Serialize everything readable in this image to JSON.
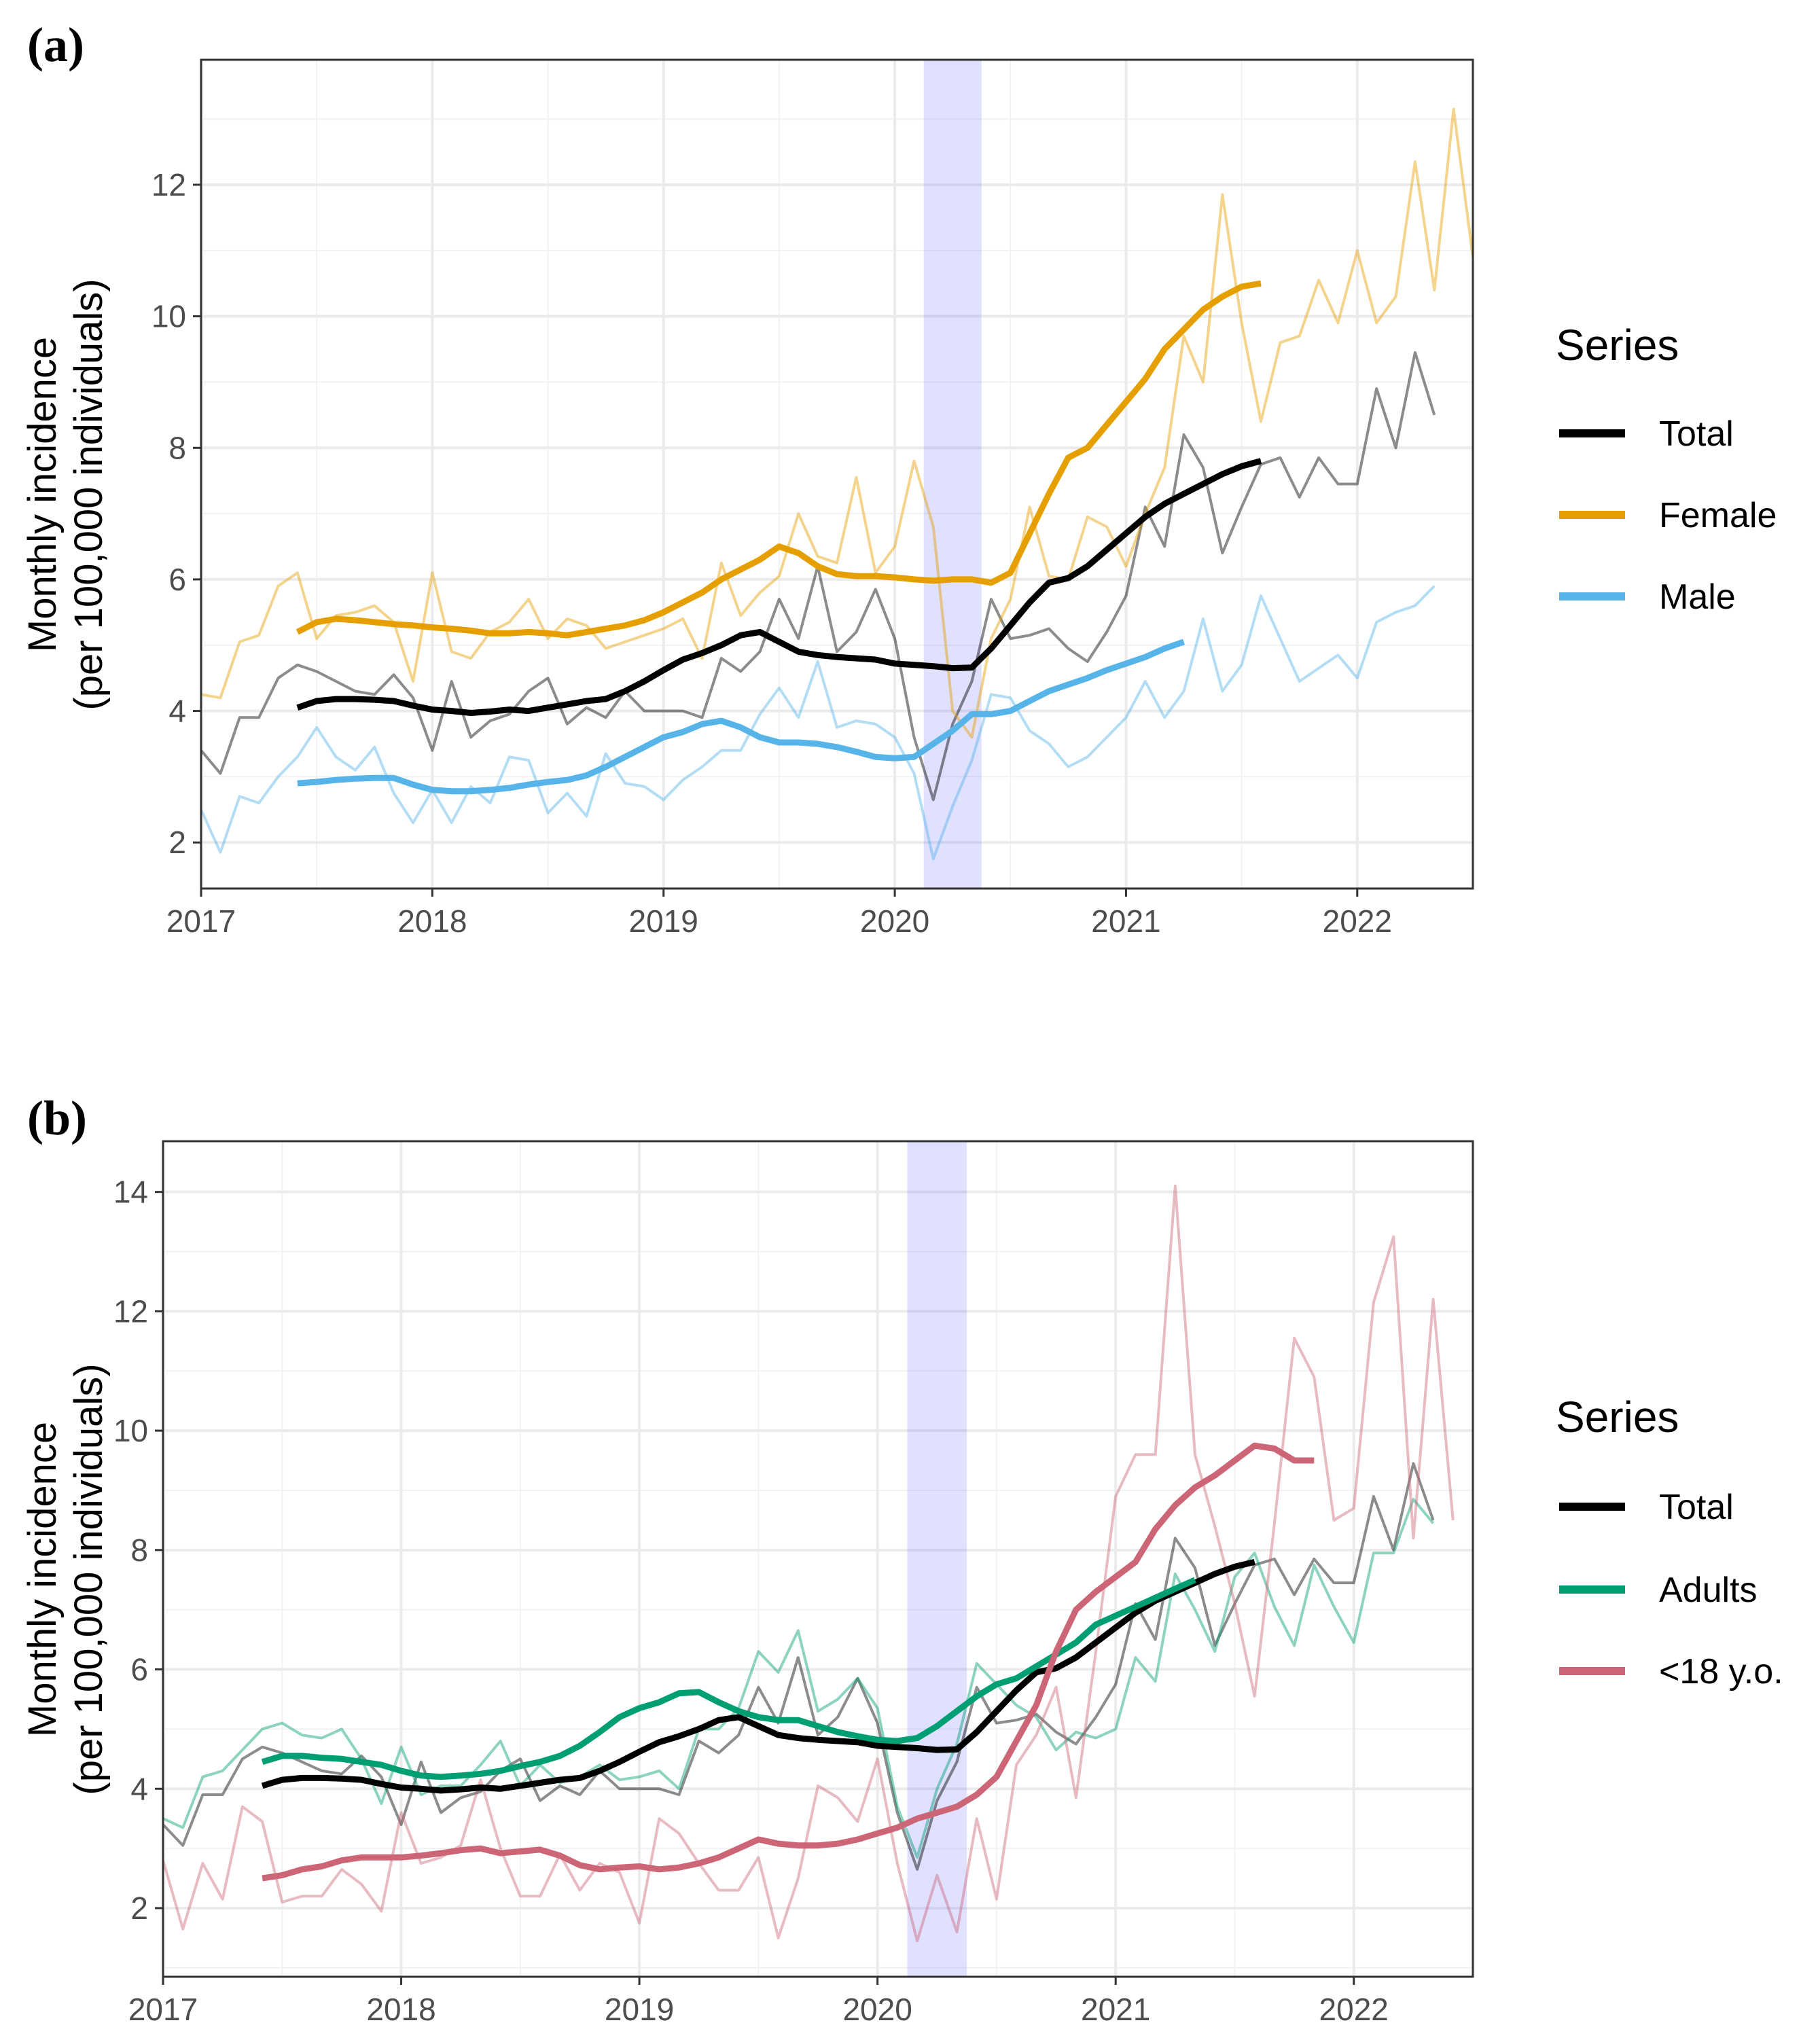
{
  "chart_data": [
    {
      "id": "a",
      "panel_label": "(a)",
      "type": "line",
      "ylabel_lines": [
        "Monthly incidence",
        "(per 100,000 individuals)"
      ],
      "xlabel": "",
      "xlim": [
        2017.0,
        2022.5
      ],
      "ylim": [
        1.3,
        13.9
      ],
      "x_ticks": [
        2017,
        2018,
        2019,
        2020,
        2021,
        2022
      ],
      "x_tick_labels": [
        "2017",
        "2018",
        "2019",
        "2020",
        "2021",
        "2022"
      ],
      "y_ticks": [
        2,
        4,
        6,
        8,
        10,
        12
      ],
      "y_tick_labels": [
        "2",
        "4",
        "6",
        "8",
        "10",
        "12"
      ],
      "y_minor": [
        3,
        5,
        7,
        9,
        11,
        13
      ],
      "grid": true,
      "highlight_band": [
        2020.125,
        2020.375
      ],
      "legend_title": "Series",
      "legend_position": "right",
      "series": [
        {
          "name": "Total",
          "color": "#000000",
          "raw": [
            3.4,
            3.05,
            3.9,
            3.9,
            4.5,
            4.7,
            4.6,
            4.45,
            4.3,
            4.25,
            4.55,
            4.2,
            3.4,
            4.45,
            3.6,
            3.85,
            3.95,
            4.3,
            4.5,
            3.8,
            4.05,
            3.9,
            4.3,
            4.0,
            4.0,
            4.0,
            3.9,
            4.8,
            4.6,
            4.9,
            5.7,
            5.1,
            6.2,
            4.9,
            5.2,
            5.85,
            5.1,
            3.6,
            2.65,
            3.8,
            4.45,
            5.7,
            5.1,
            5.15,
            5.25,
            4.95,
            4.75,
            5.2,
            5.75,
            7.1,
            6.5,
            8.2,
            7.7,
            6.4,
            7.1,
            7.75,
            7.85,
            7.25,
            7.85,
            7.45,
            7.45,
            8.9,
            8.0,
            9.45,
            8.5
          ],
          "smooth": [
            4.05,
            4.15,
            4.18,
            4.18,
            4.17,
            4.15,
            4.08,
            4.02,
            4.0,
            3.97,
            3.99,
            4.02,
            4.0,
            4.05,
            4.1,
            4.15,
            4.18,
            4.3,
            4.45,
            4.62,
            4.78,
            4.88,
            5.0,
            5.15,
            5.2,
            5.05,
            4.9,
            4.85,
            4.82,
            4.8,
            4.78,
            4.72,
            4.7,
            4.68,
            4.65,
            4.66,
            4.95,
            5.3,
            5.65,
            5.95,
            6.02,
            6.2,
            6.45,
            6.7,
            6.95,
            7.15,
            7.3,
            7.45,
            7.6,
            7.72,
            7.8
          ]
        },
        {
          "name": "Female",
          "color": "#E69F00",
          "raw": [
            4.25,
            4.2,
            5.05,
            5.15,
            5.9,
            6.1,
            5.1,
            5.45,
            5.5,
            5.6,
            5.35,
            4.45,
            6.1,
            4.9,
            4.8,
            5.2,
            5.35,
            5.7,
            5.1,
            5.4,
            5.3,
            4.95,
            5.05,
            5.15,
            5.25,
            5.4,
            4.8,
            6.25,
            5.45,
            5.8,
            6.05,
            7.0,
            6.35,
            6.25,
            7.55,
            6.1,
            6.5,
            7.8,
            6.8,
            4.0,
            3.6,
            5.1,
            5.7,
            7.1,
            6.05,
            6.0,
            6.95,
            6.8,
            6.2,
            7.0,
            7.7,
            9.7,
            9.0,
            11.85,
            9.9,
            8.4,
            9.6,
            9.7,
            10.55,
            9.9,
            11.0,
            9.9,
            10.3,
            12.35,
            10.4,
            13.15,
            10.9
          ],
          "smooth": [
            5.2,
            5.35,
            5.4,
            5.38,
            5.35,
            5.32,
            5.3,
            5.27,
            5.25,
            5.22,
            5.18,
            5.18,
            5.2,
            5.18,
            5.15,
            5.2,
            5.25,
            5.3,
            5.38,
            5.5,
            5.65,
            5.8,
            6.0,
            6.15,
            6.3,
            6.5,
            6.4,
            6.2,
            6.08,
            6.05,
            6.05,
            6.03,
            6.0,
            5.98,
            6.0,
            6.0,
            5.95,
            6.1,
            6.7,
            7.3,
            7.85,
            8.0,
            8.35,
            8.7,
            9.05,
            9.5,
            9.8,
            10.1,
            10.3,
            10.45,
            10.5
          ]
        },
        {
          "name": "Male",
          "color": "#56B4E9",
          "raw": [
            2.5,
            1.85,
            2.7,
            2.6,
            3.0,
            3.3,
            3.75,
            3.3,
            3.1,
            3.45,
            2.75,
            2.3,
            2.8,
            2.3,
            2.85,
            2.6,
            3.3,
            3.25,
            2.45,
            2.75,
            2.4,
            3.35,
            2.9,
            2.85,
            2.65,
            2.95,
            3.15,
            3.4,
            3.4,
            3.95,
            4.35,
            3.9,
            4.75,
            3.75,
            3.85,
            3.8,
            3.6,
            3.05,
            1.75,
            2.55,
            3.25,
            4.25,
            4.2,
            3.7,
            3.5,
            3.15,
            3.3,
            3.6,
            3.9,
            4.45,
            3.9,
            4.3,
            5.4,
            4.3,
            4.7,
            5.75,
            5.1,
            4.45,
            4.65,
            4.85,
            4.5,
            5.35,
            5.5,
            5.6,
            5.9
          ],
          "smooth": [
            2.9,
            2.92,
            2.95,
            2.97,
            2.98,
            2.98,
            2.88,
            2.8,
            2.78,
            2.78,
            2.8,
            2.83,
            2.88,
            2.92,
            2.95,
            3.02,
            3.15,
            3.3,
            3.45,
            3.6,
            3.68,
            3.8,
            3.85,
            3.75,
            3.6,
            3.52,
            3.52,
            3.5,
            3.45,
            3.38,
            3.3,
            3.28,
            3.3,
            3.5,
            3.7,
            3.95,
            3.95,
            4.0,
            4.15,
            4.3,
            4.4,
            4.5,
            4.62,
            4.72,
            4.82,
            4.95,
            5.05
          ]
        }
      ]
    },
    {
      "id": "b",
      "panel_label": "(b)",
      "type": "line",
      "ylabel_lines": [
        "Monthly incidence",
        "(per 100,000 individuals)"
      ],
      "xlabel": "",
      "xlim": [
        2017.0,
        2022.5
      ],
      "ylim": [
        0.85,
        14.85
      ],
      "x_ticks": [
        2017,
        2018,
        2019,
        2020,
        2021,
        2022
      ],
      "x_tick_labels": [
        "2017",
        "2018",
        "2019",
        "2020",
        "2021",
        "2022"
      ],
      "y_ticks": [
        2,
        4,
        6,
        8,
        10,
        12,
        14
      ],
      "y_tick_labels": [
        "2",
        "4",
        "6",
        "8",
        "10",
        "12",
        "14"
      ],
      "y_minor": [
        1,
        3,
        5,
        7,
        9,
        11,
        13
      ],
      "grid": true,
      "highlight_band": [
        2020.125,
        2020.375
      ],
      "legend_title": "Series",
      "legend_position": "right",
      "series": [
        {
          "name": "Total",
          "color": "#000000",
          "raw": [
            3.4,
            3.05,
            3.9,
            3.9,
            4.5,
            4.7,
            4.6,
            4.45,
            4.3,
            4.25,
            4.55,
            4.2,
            3.4,
            4.45,
            3.6,
            3.85,
            3.95,
            4.3,
            4.5,
            3.8,
            4.05,
            3.9,
            4.3,
            4.0,
            4.0,
            4.0,
            3.9,
            4.8,
            4.6,
            4.9,
            5.7,
            5.1,
            6.2,
            4.9,
            5.2,
            5.85,
            5.1,
            3.6,
            2.65,
            3.8,
            4.45,
            5.7,
            5.1,
            5.15,
            5.25,
            4.95,
            4.75,
            5.2,
            5.75,
            7.1,
            6.5,
            8.2,
            7.7,
            6.4,
            7.1,
            7.75,
            7.85,
            7.25,
            7.85,
            7.45,
            7.45,
            8.9,
            8.0,
            9.45,
            8.5
          ],
          "smooth": [
            4.05,
            4.15,
            4.18,
            4.18,
            4.17,
            4.15,
            4.08,
            4.02,
            4.0,
            3.97,
            3.99,
            4.02,
            4.0,
            4.05,
            4.1,
            4.15,
            4.18,
            4.3,
            4.45,
            4.62,
            4.78,
            4.88,
            5.0,
            5.15,
            5.2,
            5.05,
            4.9,
            4.85,
            4.82,
            4.8,
            4.78,
            4.72,
            4.7,
            4.68,
            4.65,
            4.66,
            4.95,
            5.3,
            5.65,
            5.95,
            6.02,
            6.2,
            6.45,
            6.7,
            6.95,
            7.15,
            7.3,
            7.45,
            7.6,
            7.72,
            7.8
          ]
        },
        {
          "name": "Adults",
          "color": "#009E73",
          "raw": [
            3.5,
            3.35,
            4.2,
            4.3,
            4.65,
            5.0,
            5.1,
            4.9,
            4.85,
            5.0,
            4.5,
            3.75,
            4.7,
            3.9,
            4.05,
            4.05,
            4.4,
            4.8,
            4.05,
            4.4,
            4.1,
            4.2,
            4.4,
            4.15,
            4.2,
            4.3,
            4.0,
            5.0,
            5.0,
            5.35,
            6.3,
            5.95,
            6.65,
            5.3,
            5.5,
            5.85,
            5.35,
            3.7,
            2.85,
            4.0,
            4.75,
            6.1,
            5.75,
            5.4,
            5.2,
            4.65,
            4.95,
            4.85,
            5.0,
            6.2,
            5.8,
            7.6,
            7.0,
            6.3,
            7.55,
            7.95,
            7.05,
            6.4,
            7.75,
            7.05,
            6.45,
            7.95,
            7.95,
            8.85,
            8.45
          ],
          "smooth": [
            4.45,
            4.55,
            4.55,
            4.52,
            4.5,
            4.45,
            4.4,
            4.3,
            4.22,
            4.2,
            4.22,
            4.25,
            4.3,
            4.38,
            4.45,
            4.55,
            4.72,
            4.95,
            5.2,
            5.35,
            5.45,
            5.6,
            5.62,
            5.45,
            5.3,
            5.2,
            5.15,
            5.15,
            5.05,
            4.95,
            4.88,
            4.82,
            4.8,
            4.85,
            5.05,
            5.3,
            5.55,
            5.75,
            5.85,
            6.05,
            6.25,
            6.45,
            6.75,
            6.9,
            7.05,
            7.2,
            7.35,
            7.5
          ]
        },
        {
          "name": "<18 y.o.",
          "color": "#CC6677",
          "raw": [
            2.8,
            1.65,
            2.75,
            2.15,
            3.7,
            3.45,
            2.1,
            2.2,
            2.2,
            2.65,
            2.4,
            1.95,
            3.6,
            2.75,
            2.85,
            3.05,
            4.15,
            3.0,
            2.2,
            2.2,
            2.9,
            2.3,
            2.75,
            2.6,
            1.75,
            3.5,
            3.25,
            2.75,
            2.3,
            2.3,
            2.85,
            1.5,
            2.5,
            4.05,
            3.85,
            3.45,
            4.5,
            2.75,
            1.45,
            2.55,
            1.6,
            3.5,
            2.15,
            4.4,
            4.9,
            5.7,
            3.85,
            6.3,
            8.9,
            9.6,
            9.6,
            14.1,
            9.6,
            8.4,
            7.1,
            5.55,
            8.45,
            11.55,
            10.9,
            8.5,
            8.7,
            12.15,
            13.25,
            8.2,
            12.2,
            8.5
          ],
          "smooth": [
            2.5,
            2.55,
            2.65,
            2.7,
            2.8,
            2.85,
            2.85,
            2.85,
            2.88,
            2.92,
            2.97,
            3.0,
            2.92,
            2.95,
            2.98,
            2.88,
            2.72,
            2.65,
            2.68,
            2.7,
            2.65,
            2.68,
            2.75,
            2.85,
            3.0,
            3.15,
            3.08,
            3.05,
            3.05,
            3.08,
            3.15,
            3.25,
            3.35,
            3.5,
            3.6,
            3.7,
            3.9,
            4.2,
            4.8,
            5.4,
            6.3,
            7.0,
            7.3,
            7.55,
            7.8,
            8.35,
            8.75,
            9.05,
            9.25,
            9.5,
            9.75,
            9.7,
            9.5,
            9.5
          ]
        }
      ]
    }
  ]
}
